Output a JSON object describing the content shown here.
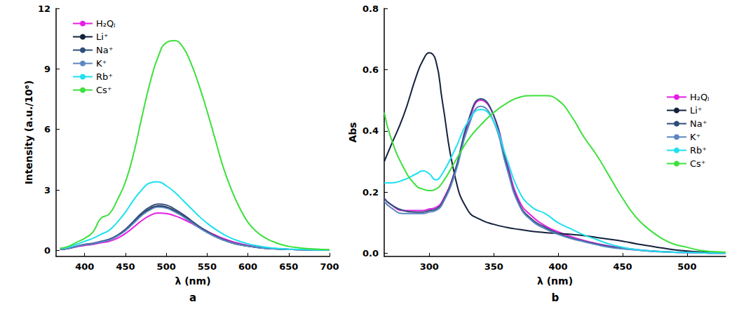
{
  "chart_data": [
    {
      "type": "line",
      "annotation": "a",
      "x_label": "λ (nm)",
      "y_label": "Intensity (a.u./10⁶)",
      "xlim": [
        365,
        700
      ],
      "xticks": [
        400,
        450,
        500,
        550,
        600,
        650,
        700
      ],
      "ylim": [
        -0.3,
        12
      ],
      "yticks": [
        0,
        3,
        6,
        9,
        12
      ],
      "grid": false,
      "legend": "upper left",
      "x": [
        370,
        380,
        390,
        400,
        410,
        420,
        430,
        440,
        450,
        460,
        470,
        480,
        490,
        500,
        510,
        520,
        530,
        540,
        550,
        560,
        570,
        580,
        590,
        600,
        610,
        620,
        630,
        640,
        650,
        660,
        670,
        680,
        690,
        700
      ],
      "series": [
        {
          "name": "H₂Qⱼ",
          "color": "#e61ee6",
          "values": [
            0.05,
            0.1,
            0.18,
            0.25,
            0.3,
            0.38,
            0.45,
            0.6,
            0.84,
            1.15,
            1.48,
            1.73,
            1.85,
            1.83,
            1.72,
            1.56,
            1.36,
            1.15,
            0.95,
            0.76,
            0.59,
            0.45,
            0.34,
            0.25,
            0.18,
            0.13,
            0.1,
            0.075,
            0.055,
            0.04,
            0.03,
            0.02,
            0.02,
            0.01
          ]
        },
        {
          "name": "Li⁺",
          "color": "#14213d",
          "values": [
            0.05,
            0.1,
            0.2,
            0.28,
            0.33,
            0.43,
            0.52,
            0.72,
            1.0,
            1.38,
            1.77,
            2.06,
            2.2,
            2.15,
            1.96,
            1.72,
            1.43,
            1.15,
            0.9,
            0.69,
            0.52,
            0.38,
            0.28,
            0.21,
            0.15,
            0.11,
            0.085,
            0.065,
            0.05,
            0.04,
            0.03,
            0.02,
            0.02,
            0.01
          ]
        },
        {
          "name": "Na⁺",
          "color": "#2e4d7a",
          "values": [
            0.05,
            0.1,
            0.2,
            0.3,
            0.35,
            0.45,
            0.55,
            0.75,
            1.05,
            1.45,
            1.85,
            2.15,
            2.3,
            2.25,
            2.05,
            1.8,
            1.5,
            1.2,
            0.95,
            0.72,
            0.54,
            0.4,
            0.3,
            0.22,
            0.16,
            0.12,
            0.09,
            0.07,
            0.05,
            0.04,
            0.03,
            0.02,
            0.02,
            0.01
          ]
        },
        {
          "name": "K⁺",
          "color": "#5b86c0",
          "values": [
            0.05,
            0.1,
            0.2,
            0.28,
            0.33,
            0.42,
            0.51,
            0.7,
            0.98,
            1.35,
            1.73,
            2.01,
            2.15,
            2.1,
            1.92,
            1.69,
            1.41,
            1.13,
            0.89,
            0.68,
            0.51,
            0.38,
            0.28,
            0.21,
            0.15,
            0.11,
            0.085,
            0.065,
            0.05,
            0.04,
            0.03,
            0.02,
            0.02,
            0.01
          ]
        },
        {
          "name": "Rb⁺",
          "color": "#1fe0f0",
          "values": [
            0.1,
            0.15,
            0.3,
            0.45,
            0.6,
            0.8,
            1.0,
            1.4,
            1.9,
            2.5,
            3.0,
            3.35,
            3.4,
            3.2,
            2.9,
            2.5,
            2.1,
            1.7,
            1.35,
            1.05,
            0.8,
            0.6,
            0.45,
            0.33,
            0.24,
            0.17,
            0.12,
            0.09,
            0.06,
            0.05,
            0.04,
            0.03,
            0.02,
            0.02
          ]
        },
        {
          "name": "Cs⁺",
          "color": "#3de03d",
          "values": [
            0.1,
            0.2,
            0.4,
            0.6,
            0.9,
            1.6,
            1.8,
            2.5,
            3.4,
            4.8,
            6.6,
            8.3,
            9.6,
            10.3,
            10.4,
            10.1,
            9.3,
            8.2,
            6.9,
            5.5,
            4.1,
            3.0,
            2.1,
            1.4,
            0.95,
            0.65,
            0.45,
            0.3,
            0.2,
            0.14,
            0.1,
            0.07,
            0.05,
            0.04
          ]
        }
      ]
    },
    {
      "type": "line",
      "annotation": "b",
      "x_label": "λ (nm)",
      "y_label": "Abs",
      "xlim": [
        265,
        530
      ],
      "xticks": [
        300,
        350,
        400,
        450,
        500
      ],
      "ylim": [
        -0.01,
        0.8
      ],
      "yticks": [
        {
          "value": 0,
          "label": "0.0"
        },
        0.2,
        0.4,
        0.6,
        0.8
      ],
      "grid": false,
      "legend": "right",
      "x": [
        265,
        270,
        280,
        290,
        295,
        300,
        305,
        310,
        320,
        330,
        340,
        350,
        360,
        370,
        380,
        390,
        400,
        410,
        420,
        430,
        440,
        450,
        460,
        470,
        480,
        490,
        500,
        510,
        520,
        530
      ],
      "series": [
        {
          "name": "H₂Qⱼ",
          "color": "#e61ee6",
          "values": [
            0.18,
            0.16,
            0.14,
            0.14,
            0.14,
            0.145,
            0.15,
            0.17,
            0.27,
            0.42,
            0.5,
            0.45,
            0.3,
            0.17,
            0.12,
            0.09,
            0.07,
            0.055,
            0.042,
            0.032,
            0.024,
            0.018,
            0.013,
            0.009,
            0.006,
            0.004,
            0.003,
            0.002,
            0.001,
            0.001
          ]
        },
        {
          "name": "Li⁺",
          "color": "#14213d",
          "values": [
            0.3,
            0.35,
            0.45,
            0.58,
            0.63,
            0.655,
            0.63,
            0.5,
            0.25,
            0.14,
            0.11,
            0.095,
            0.085,
            0.078,
            0.072,
            0.068,
            0.065,
            0.062,
            0.058,
            0.052,
            0.046,
            0.04,
            0.032,
            0.025,
            0.018,
            0.012,
            0.008,
            0.005,
            0.003,
            0.002
          ]
        },
        {
          "name": "Na⁺",
          "color": "#2e4d7a",
          "values": [
            0.18,
            0.16,
            0.14,
            0.135,
            0.135,
            0.14,
            0.145,
            0.165,
            0.27,
            0.43,
            0.505,
            0.45,
            0.29,
            0.16,
            0.11,
            0.085,
            0.065,
            0.05,
            0.04,
            0.03,
            0.022,
            0.016,
            0.012,
            0.008,
            0.006,
            0.004,
            0.003,
            0.002,
            0.001,
            0.001
          ]
        },
        {
          "name": "K⁺",
          "color": "#5b86c0",
          "values": [
            0.17,
            0.15,
            0.13,
            0.13,
            0.13,
            0.135,
            0.14,
            0.16,
            0.26,
            0.41,
            0.48,
            0.43,
            0.28,
            0.155,
            0.105,
            0.08,
            0.062,
            0.048,
            0.038,
            0.028,
            0.02,
            0.015,
            0.011,
            0.008,
            0.005,
            0.004,
            0.003,
            0.002,
            0.001,
            0.001
          ]
        },
        {
          "name": "Rb⁺",
          "color": "#1fe0f0",
          "values": [
            0.23,
            0.23,
            0.24,
            0.26,
            0.27,
            0.26,
            0.24,
            0.26,
            0.34,
            0.43,
            0.47,
            0.43,
            0.31,
            0.2,
            0.15,
            0.13,
            0.1,
            0.08,
            0.06,
            0.045,
            0.03,
            0.02,
            0.013,
            0.009,
            0.006,
            0.004,
            0.003,
            0.002,
            0.001,
            0.001
          ]
        },
        {
          "name": "Cs⁺",
          "color": "#3de03d",
          "values": [
            0.46,
            0.38,
            0.28,
            0.22,
            0.21,
            0.205,
            0.21,
            0.23,
            0.3,
            0.37,
            0.42,
            0.46,
            0.49,
            0.51,
            0.515,
            0.515,
            0.5,
            0.45,
            0.38,
            0.32,
            0.25,
            0.18,
            0.12,
            0.08,
            0.05,
            0.03,
            0.02,
            0.01,
            0.006,
            0.004
          ]
        }
      ]
    }
  ]
}
